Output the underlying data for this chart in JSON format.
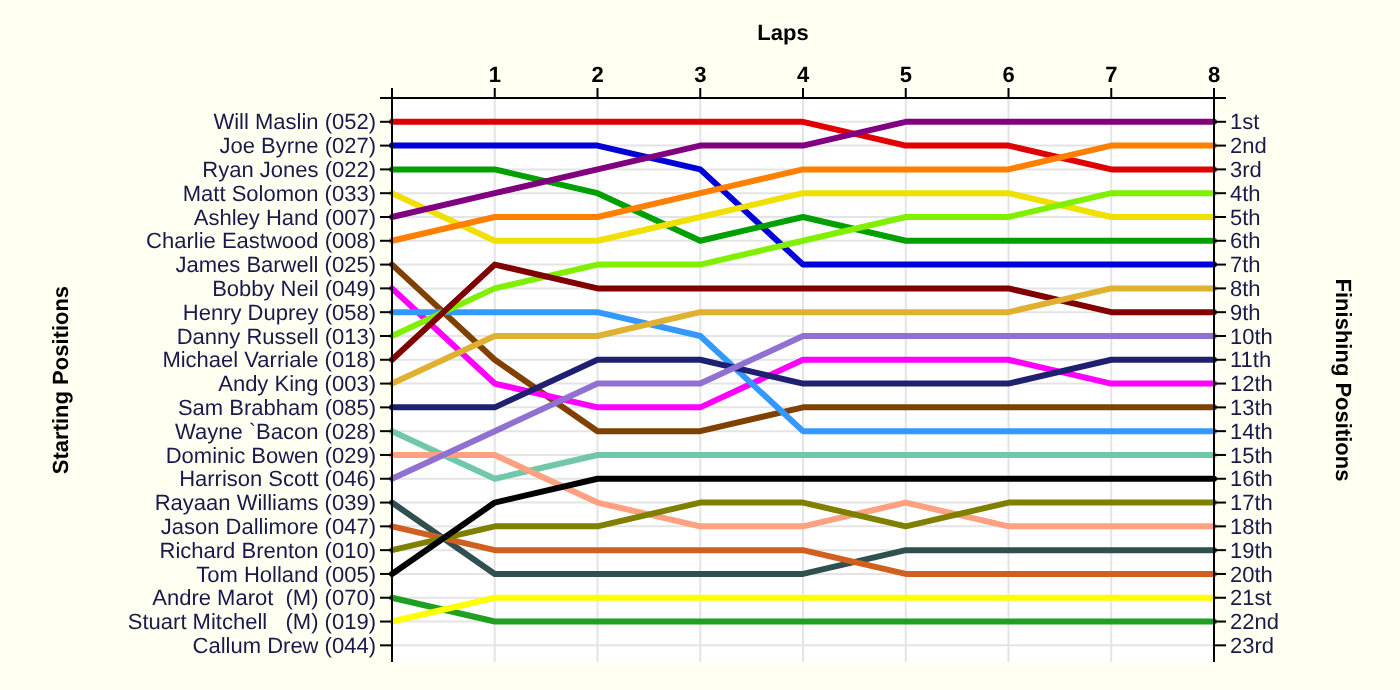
{
  "chart_data": {
    "type": "line",
    "xlabel": "Laps",
    "annotations": [
      "Starting Positions"
    ],
    "y2label": "Finishing Positions",
    "x": [
      0,
      1,
      2,
      3,
      4,
      5,
      6,
      7,
      8
    ],
    "xlim": [
      0,
      8
    ],
    "xticks": [
      {
        "value": 0,
        "label": null
      },
      1,
      2,
      3,
      4,
      5,
      6,
      7,
      8
    ],
    "y_categories": [
      "Will Maslin (052)",
      "Joe Byrne (027)",
      "Ryan Jones (022)",
      "Matt Solomon (033)",
      "Ashley Hand (007)",
      "Charlie Eastwood (008)",
      "James Barwell (025)",
      "Bobby Neil (049)",
      "Henry Duprey (058)",
      "Danny Russell (013)",
      "Michael Varriale (018)",
      "Andy King (003)",
      "Sam Brabham (085)",
      "Wayne `Bacon (028)",
      "Dominic Bowen (029)",
      "Harrison Scott (046)",
      "Rayaan Williams (039)",
      "Jason Dallimore (047)",
      "Richard Brenton (010)",
      "Tom Holland (005)",
      "Andre Marot  (M) (070)",
      "Stuart Mitchell   (M) (019)",
      "Callum Drew (044)"
    ],
    "y2lim": [
      23.7,
      0
    ],
    "y2ticks": [
      {
        "value": 0,
        "label": null
      },
      {
        "value": 1,
        "label": "1st"
      },
      {
        "value": 2,
        "label": "2nd"
      },
      {
        "value": 3,
        "label": "3rd"
      },
      {
        "value": 4,
        "label": "4th"
      },
      {
        "value": 5,
        "label": "5th"
      },
      {
        "value": 6,
        "label": "6th"
      },
      {
        "value": 7,
        "label": "7th"
      },
      {
        "value": 8,
        "label": "8th"
      },
      {
        "value": 9,
        "label": "9th"
      },
      {
        "value": 10,
        "label": "10th"
      },
      {
        "value": 11,
        "label": "11th"
      },
      {
        "value": 12,
        "label": "12th"
      },
      {
        "value": 13,
        "label": "13th"
      },
      {
        "value": 14,
        "label": "14th"
      },
      {
        "value": 15,
        "label": "15th"
      },
      {
        "value": 16,
        "label": "16th"
      },
      {
        "value": 17,
        "label": "17th"
      },
      {
        "value": 18,
        "label": "18th"
      },
      {
        "value": 19,
        "label": "19th"
      },
      {
        "value": 20,
        "label": "20th"
      },
      {
        "value": 21,
        "label": "21st"
      },
      {
        "value": 22,
        "label": "22nd"
      },
      {
        "value": 23,
        "label": "23rd"
      }
    ],
    "grid": true,
    "marker": "none",
    "line_style": "solid",
    "series": [
      {
        "axis": "y2",
        "color": "#e00000",
        "values": [
          1,
          1,
          1,
          1,
          1,
          2,
          2,
          3,
          3
        ]
      },
      {
        "axis": "y2",
        "color": "#0000d8",
        "values": [
          2,
          2,
          2,
          3,
          7,
          7,
          7,
          7,
          7
        ]
      },
      {
        "axis": "y2",
        "color": "#00a000",
        "values": [
          3,
          3,
          4,
          6,
          5,
          6,
          6,
          6,
          6
        ]
      },
      {
        "axis": "y2",
        "color": "#f0e000",
        "values": [
          4,
          6,
          6,
          5,
          4,
          4,
          4,
          5,
          5
        ]
      },
      {
        "axis": "y2",
        "color": "#800080",
        "values": [
          5,
          4,
          3,
          2,
          2,
          1,
          1,
          1,
          1
        ]
      },
      {
        "axis": "y2",
        "color": "#ff8000",
        "values": [
          6,
          5,
          5,
          4,
          3,
          3,
          3,
          2,
          2
        ]
      },
      {
        "axis": "y2",
        "color": "#804000",
        "values": [
          7,
          11,
          14,
          14,
          13,
          13,
          13,
          13,
          13
        ]
      },
      {
        "axis": "y2",
        "color": "#ff00ff",
        "values": [
          8,
          12,
          13,
          13,
          11,
          11,
          11,
          12,
          12
        ]
      },
      {
        "axis": "y2",
        "color": "#3399ff",
        "values": [
          9,
          9,
          9,
          10,
          14,
          14,
          14,
          14,
          14
        ]
      },
      {
        "axis": "y2",
        "color": "#80f000",
        "values": [
          10,
          8,
          7,
          7,
          6,
          5,
          5,
          4,
          4
        ]
      },
      {
        "axis": "y2",
        "color": "#800000",
        "values": [
          11,
          7,
          8,
          8,
          8,
          8,
          8,
          9,
          9
        ]
      },
      {
        "axis": "y2",
        "color": "#e0b030",
        "values": [
          12,
          10,
          10,
          9,
          9,
          9,
          9,
          8,
          8
        ]
      },
      {
        "axis": "y2",
        "color": "#202070",
        "values": [
          13,
          13,
          11,
          11,
          12,
          12,
          12,
          11,
          11
        ]
      },
      {
        "axis": "y2",
        "color": "#70c8a8",
        "values": [
          14,
          16,
          15,
          15,
          15,
          15,
          15,
          15,
          15
        ]
      },
      {
        "axis": "y2",
        "color": "#ffa080",
        "values": [
          15,
          15,
          17,
          18,
          18,
          17,
          18,
          18,
          18
        ]
      },
      {
        "axis": "y2",
        "color": "#9070d0",
        "values": [
          16,
          14,
          12,
          12,
          10,
          10,
          10,
          10,
          10
        ]
      },
      {
        "axis": "y2",
        "color": "#305050",
        "values": [
          17,
          20,
          20,
          20,
          20,
          19,
          19,
          19,
          19
        ]
      },
      {
        "axis": "y2",
        "color": "#d06020",
        "values": [
          18,
          19,
          19,
          19,
          19,
          20,
          20,
          20,
          20
        ]
      },
      {
        "axis": "y2",
        "color": "#808000",
        "values": [
          19,
          18,
          18,
          17,
          17,
          18,
          17,
          17,
          17
        ]
      },
      {
        "axis": "y2",
        "color": "#000000",
        "values": [
          20,
          17,
          16,
          16,
          16,
          16,
          16,
          16,
          16
        ]
      },
      {
        "axis": "y2",
        "color": "#20a020",
        "values": [
          21,
          22,
          22,
          22,
          22,
          22,
          22,
          22,
          22
        ]
      },
      {
        "axis": "y2",
        "color": "#ffff00",
        "values": [
          22,
          21,
          21,
          21,
          21,
          21,
          21,
          21,
          21
        ]
      }
    ]
  }
}
